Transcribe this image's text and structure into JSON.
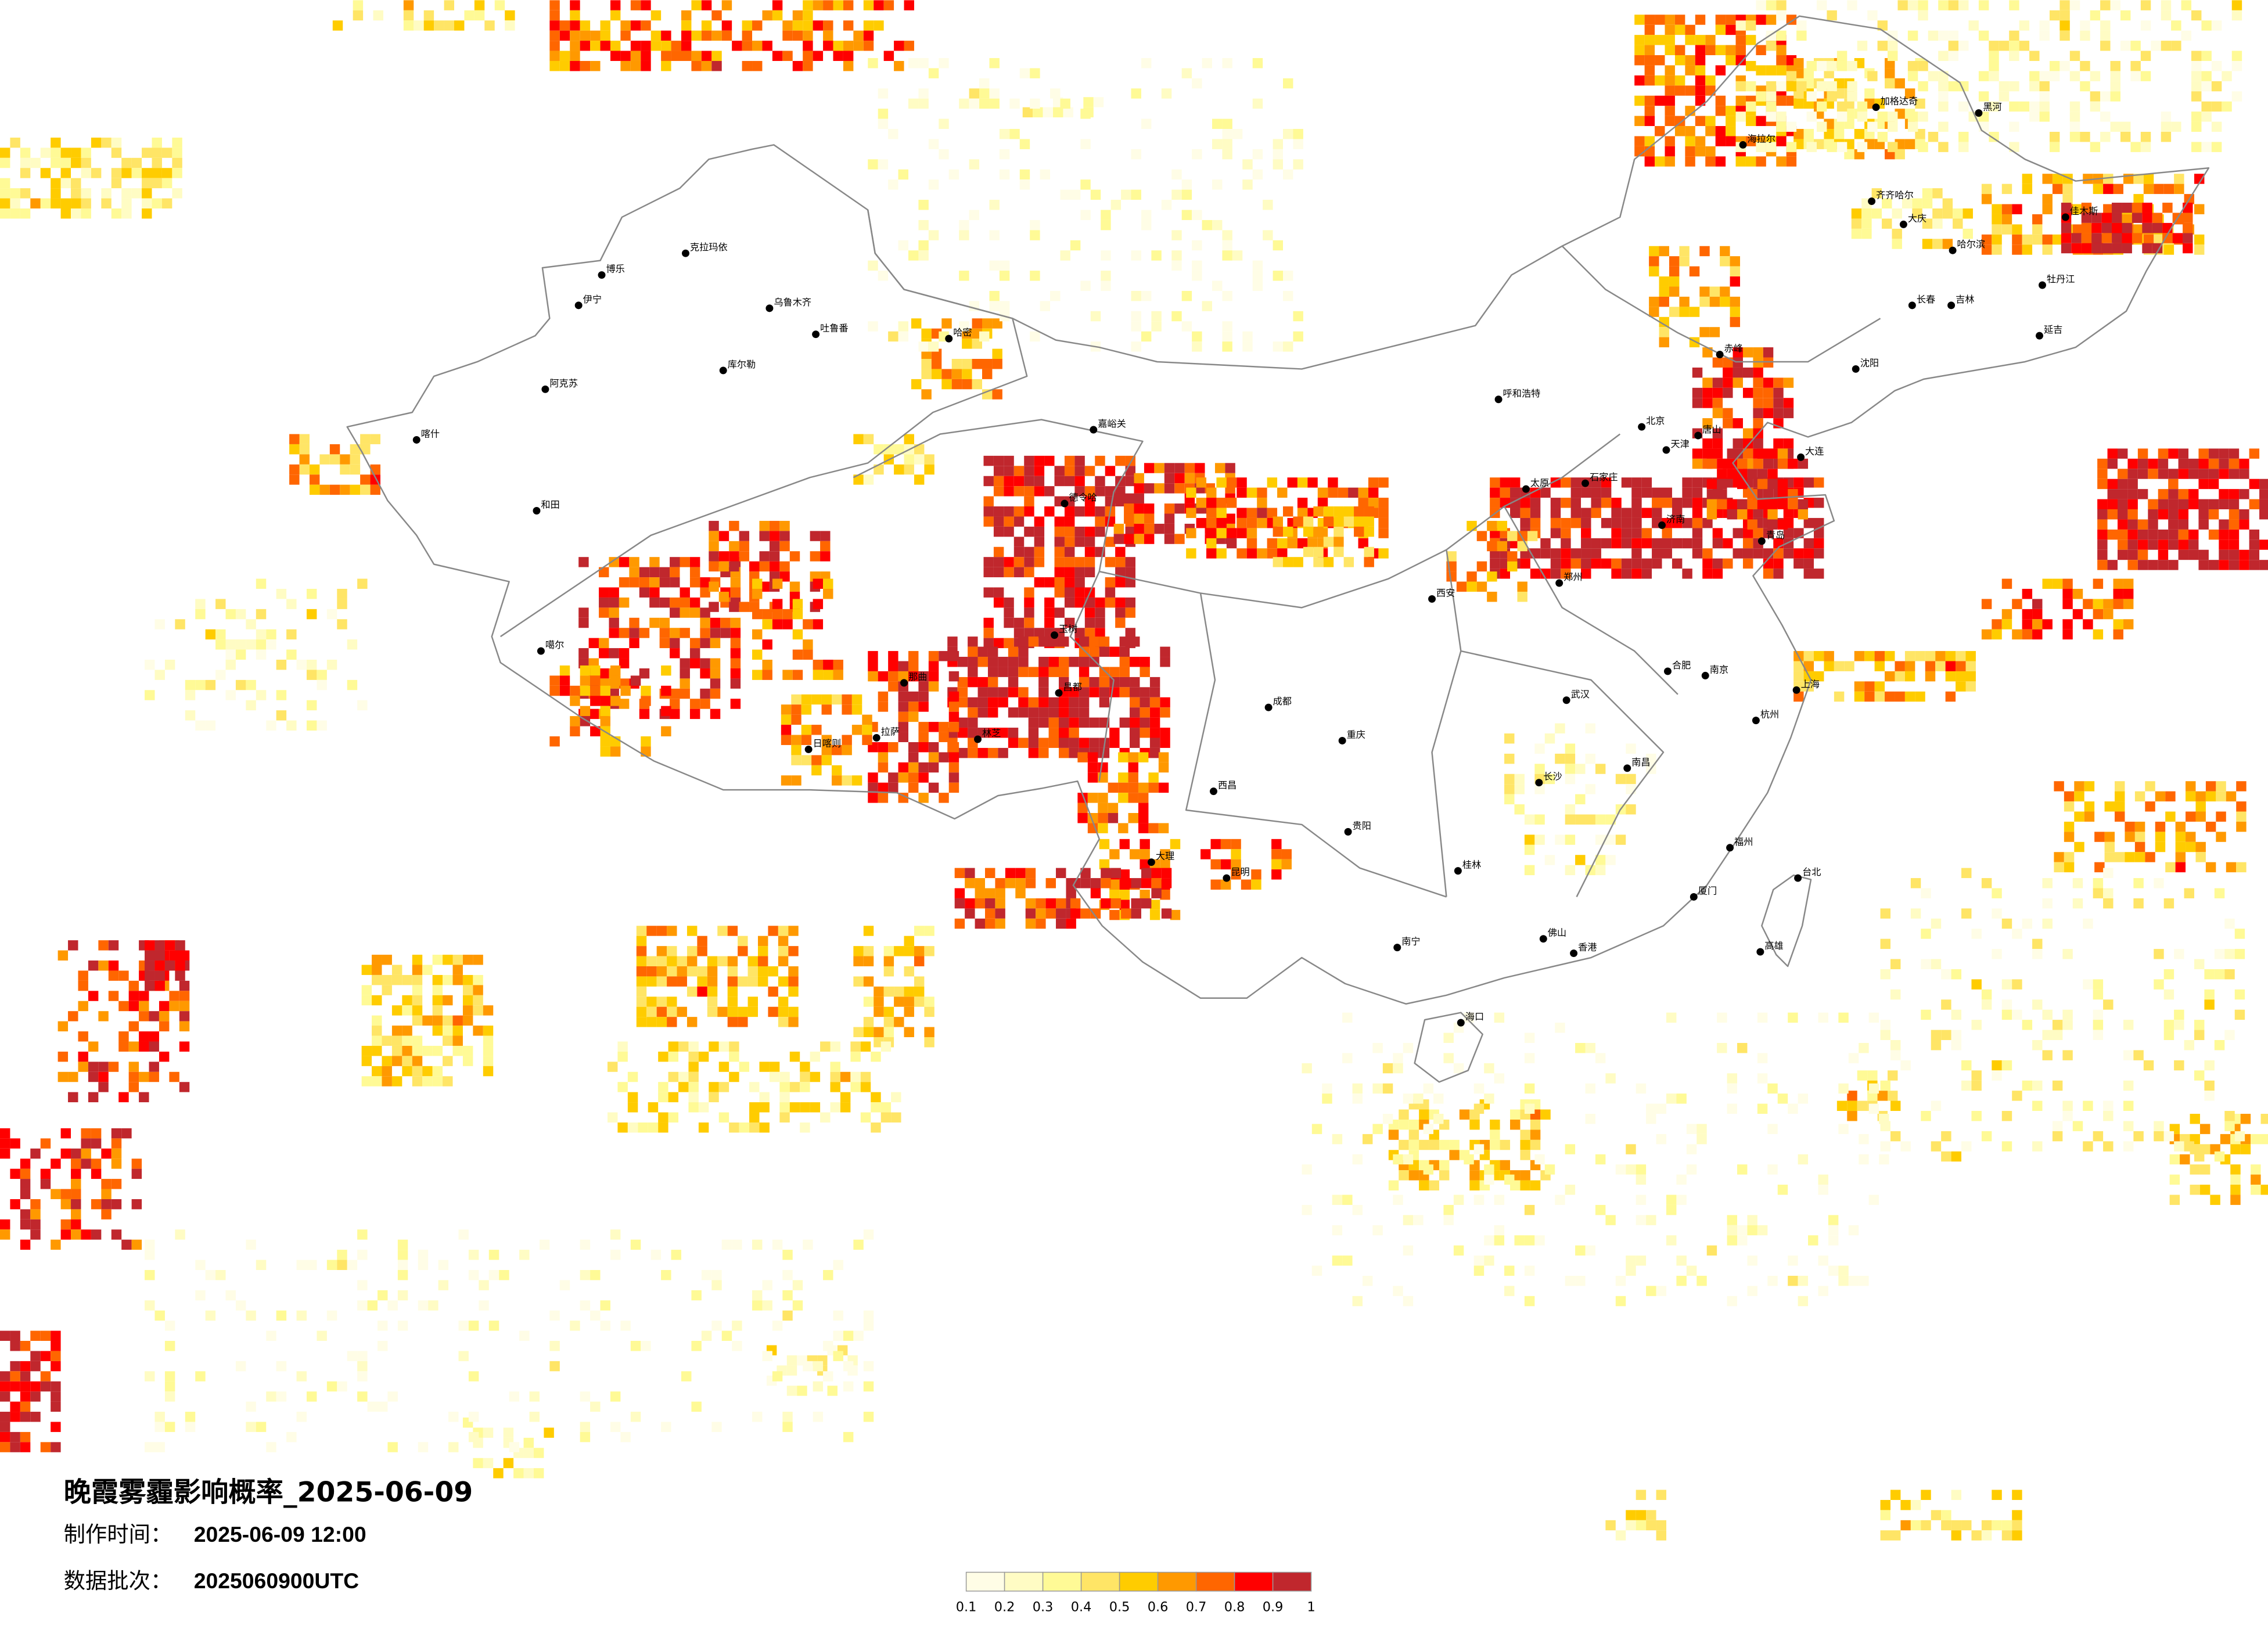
{
  "title": "晚霞雾霾影响概率_2025-06-09",
  "production_time": {
    "label": "制作时间：",
    "value": "2025-06-09 12:00"
  },
  "data_batch": {
    "label": "数据批次：",
    "value": "2025060900UTC"
  },
  "legend": {
    "labels": [
      "0.1",
      "0.2",
      "0.3",
      "0.4",
      "0.5",
      "0.6",
      "0.7",
      "0.8",
      "0.9",
      "1"
    ],
    "colors": [
      "#fffde6",
      "#fffcc4",
      "#fffa96",
      "#ffe566",
      "#ffcc00",
      "#ff9900",
      "#ff6600",
      "#ff0000",
      "#c0272d"
    ]
  },
  "cities": [
    "北京",
    "天津",
    "石家庄",
    "太原",
    "济南",
    "郑州",
    "青岛",
    "大连",
    "呼和浩特",
    "唐山",
    "沈阳",
    "西安",
    "武汉",
    "合肥",
    "南京",
    "上海",
    "杭州",
    "南昌",
    "长沙",
    "福州",
    "厦门",
    "佛山",
    "香港",
    "台北",
    "高雄",
    "桂林",
    "成都",
    "重庆",
    "贵阳",
    "昆明",
    "南宁",
    "玉树",
    "西昌",
    "大理",
    "克拉玛依",
    "伊宁",
    "乌鲁木齐",
    "吐鲁番",
    "哈密",
    "库尔勒",
    "阿克苏",
    "喀什",
    "和田",
    "拉萨",
    "日喀则",
    "那曲",
    "林芝",
    "昌都",
    "德令哈",
    "噶尔",
    "博乐",
    "嘉峪关",
    "哈尔滨",
    "齐齐哈尔",
    "长春",
    "吉林",
    "黑河",
    "海拉尔",
    "加格达奇",
    "佳木斯",
    "牡丹江",
    "大庆",
    "赤峰",
    "延吉",
    "海口"
  ]
}
